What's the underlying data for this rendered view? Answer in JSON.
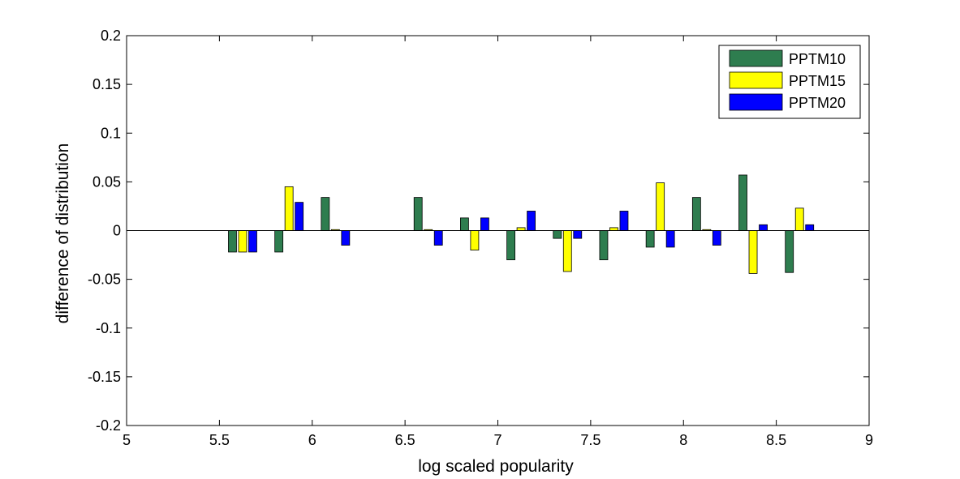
{
  "chart_data": {
    "type": "bar",
    "xlabel": "log scaled popularity",
    "ylabel": "difference of distribution",
    "xlim": [
      5,
      9
    ],
    "ylim": [
      -0.2,
      0.2
    ],
    "x_ticks": [
      "5",
      "5.5",
      "6",
      "6.5",
      "7",
      "7.5",
      "8",
      "8.5",
      "9"
    ],
    "y_ticks": [
      "0.2",
      "0.15",
      "0.1",
      "0.05",
      "0",
      "-0.05",
      "-0.1",
      "-0.15",
      "-0.2"
    ],
    "x": [
      5.625,
      5.875,
      6.125,
      6.625,
      6.875,
      7.125,
      7.375,
      7.625,
      7.875,
      8.125,
      8.375,
      8.625
    ],
    "legend_position": "top-right",
    "grid": false,
    "series": [
      {
        "name": "PPTM10",
        "color": "#2e7d4f",
        "values": [
          -0.022,
          -0.022,
          0.034,
          0.034,
          0.013,
          -0.03,
          -0.008,
          -0.03,
          -0.017,
          0.034,
          0.057,
          -0.043
        ]
      },
      {
        "name": "PPTM15",
        "color": "#ffff00",
        "values": [
          -0.022,
          0.045,
          0.001,
          0.001,
          -0.02,
          0.003,
          -0.042,
          0.003,
          0.049,
          0.001,
          -0.044,
          0.023
        ]
      },
      {
        "name": "PPTM20",
        "color": "#0000ff",
        "values": [
          -0.022,
          0.029,
          -0.015,
          -0.015,
          0.013,
          0.02,
          -0.008,
          0.02,
          -0.017,
          -0.015,
          0.006,
          0.006
        ]
      }
    ]
  }
}
